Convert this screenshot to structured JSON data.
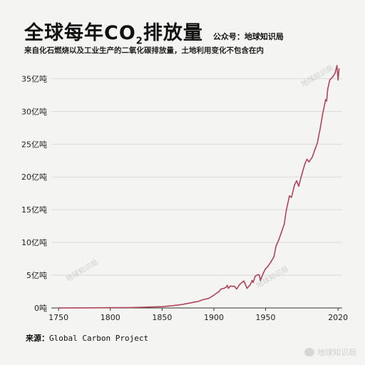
{
  "header": {
    "title_main": "全球每年CO",
    "title_sub": "2",
    "title_end": "排放量",
    "account": "公众号：地球知识局",
    "subtitle": "来自化石燃烧以及工业生产的二氧化碳排放量，土地利用变化不包含在内"
  },
  "footer": {
    "source_label": "来源：",
    "source_name": "Global Carbon Project"
  },
  "watermarks": {
    "text": "地球知识局",
    "corner": "地球知识局"
  },
  "colors": {
    "line": "#b0465a",
    "grid": "#d9d9d9",
    "background": "#f4f4f2"
  },
  "chart_data": {
    "type": "line",
    "xlim": [
      1743,
      2024
    ],
    "ylim": [
      0,
      37
    ],
    "xticks": [
      {
        "value": 1750,
        "label": "1750"
      },
      {
        "value": 1800,
        "label": "1800"
      },
      {
        "value": 1850,
        "label": "1850"
      },
      {
        "value": 1900,
        "label": "1900"
      },
      {
        "value": 1950,
        "label": "1950"
      },
      {
        "value": 2020,
        "label": "2020"
      }
    ],
    "yticks": [
      {
        "value": 0,
        "label": "0吨"
      },
      {
        "value": 5,
        "label": "5亿吨"
      },
      {
        "value": 10,
        "label": "10亿吨"
      },
      {
        "value": 15,
        "label": "15亿吨"
      },
      {
        "value": 20,
        "label": "20亿吨"
      },
      {
        "value": 25,
        "label": "25亿吨"
      },
      {
        "value": 30,
        "label": "30亿吨"
      },
      {
        "value": 35,
        "label": "35亿吨"
      }
    ],
    "grid": true,
    "series": [
      {
        "x": [
          1750,
          1760,
          1770,
          1780,
          1790,
          1800,
          1810,
          1820,
          1830,
          1840,
          1850,
          1855,
          1860,
          1865,
          1870,
          1875,
          1880,
          1885,
          1890,
          1895,
          1900,
          1903,
          1905,
          1907,
          1910,
          1912,
          1913,
          1914,
          1916,
          1918,
          1920,
          1922,
          1925,
          1928,
          1929,
          1930,
          1932,
          1935,
          1937,
          1938,
          1940,
          1943,
          1944,
          1945,
          1946,
          1948,
          1950,
          1952,
          1955,
          1958,
          1960,
          1963,
          1965,
          1968,
          1970,
          1973,
          1975,
          1978,
          1980,
          1982,
          1985,
          1988,
          1990,
          1992,
          1995,
          1998,
          2000,
          2003,
          2005,
          2008,
          2009,
          2010,
          2012,
          2015,
          2017,
          2019,
          2020,
          2021
        ],
        "y": [
          0.01,
          0.01,
          0.02,
          0.02,
          0.03,
          0.04,
          0.05,
          0.07,
          0.1,
          0.15,
          0.2,
          0.28,
          0.35,
          0.45,
          0.55,
          0.7,
          0.85,
          1.0,
          1.3,
          1.45,
          1.95,
          2.3,
          2.5,
          2.9,
          3.0,
          3.2,
          3.45,
          3.0,
          3.35,
          3.3,
          3.3,
          2.9,
          3.6,
          4.0,
          4.1,
          3.8,
          3.0,
          3.5,
          4.2,
          3.9,
          4.85,
          5.1,
          5.0,
          4.2,
          4.6,
          5.4,
          6.0,
          6.3,
          7.0,
          7.8,
          9.4,
          10.5,
          11.4,
          12.8,
          14.9,
          17.1,
          16.9,
          18.8,
          19.4,
          18.6,
          20.4,
          22.0,
          22.7,
          22.3,
          23.0,
          24.3,
          25.2,
          27.6,
          29.5,
          31.8,
          31.6,
          33.4,
          34.8,
          35.3,
          35.8,
          37.0,
          34.8,
          36.5
        ]
      }
    ]
  }
}
